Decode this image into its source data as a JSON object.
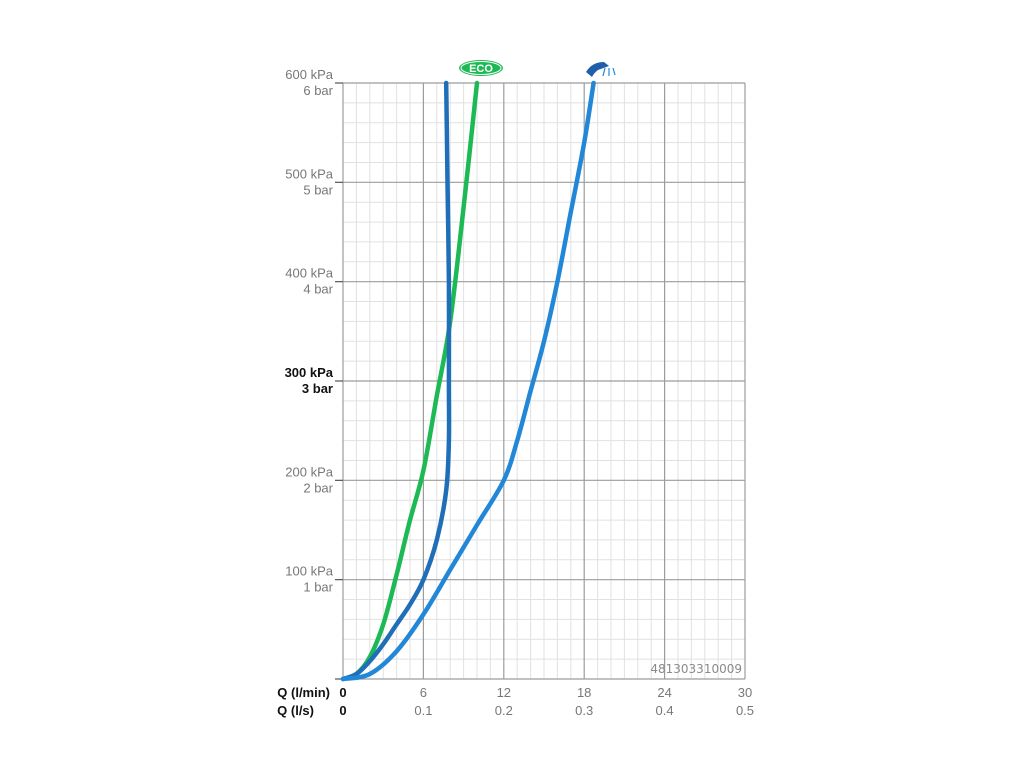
{
  "chart_data": {
    "type": "line",
    "x_axis_primary": {
      "label": "Q (l/min)",
      "ticks": [
        "0",
        "6",
        "12",
        "18",
        "24",
        "30"
      ],
      "range": [
        0,
        30
      ]
    },
    "x_axis_secondary": {
      "label": "Q (l/s)",
      "ticks": [
        "0",
        "0.1",
        "0.2",
        "0.3",
        "0.4",
        "0.5"
      ]
    },
    "y_axis": {
      "range": [
        0,
        600
      ],
      "ticks": [
        {
          "value": 600,
          "kpa": "600 kPa",
          "bar": "6 bar",
          "bold": false
        },
        {
          "value": 500,
          "kpa": "500 kPa",
          "bar": "5 bar",
          "bold": false
        },
        {
          "value": 400,
          "kpa": "400 kPa",
          "bar": "4 bar",
          "bold": false
        },
        {
          "value": 300,
          "kpa": "300 kPa",
          "bar": "3 bar",
          "bold": true
        },
        {
          "value": 200,
          "kpa": "200 kPa",
          "bar": "2 bar",
          "bold": false
        },
        {
          "value": 100,
          "kpa": "100 kPa",
          "bar": "1 bar",
          "bold": false
        }
      ]
    },
    "grid": true,
    "series": [
      {
        "marker": "eco-badge",
        "color": "#1db954",
        "points": [
          [
            0,
            0
          ],
          [
            1,
            5
          ],
          [
            2,
            22
          ],
          [
            3,
            55
          ],
          [
            4,
            105
          ],
          [
            5,
            160
          ],
          [
            6,
            210
          ],
          [
            7,
            285
          ],
          [
            8,
            360
          ],
          [
            9,
            475
          ],
          [
            10,
            600
          ]
        ]
      },
      {
        "marker": "none",
        "color": "#1f6eb8",
        "points": [
          [
            0,
            0
          ],
          [
            1,
            5
          ],
          [
            2,
            18
          ],
          [
            3,
            35
          ],
          [
            4,
            55
          ],
          [
            5,
            75
          ],
          [
            6,
            100
          ],
          [
            7,
            140
          ],
          [
            7.7,
            190
          ],
          [
            7.9,
            240
          ],
          [
            7.9,
            300
          ],
          [
            7.9,
            400
          ],
          [
            7.8,
            500
          ],
          [
            7.7,
            600
          ]
        ]
      },
      {
        "marker": "shower-head-icon",
        "color": "#2387d8",
        "points": [
          [
            0,
            0
          ],
          [
            2,
            5
          ],
          [
            4,
            28
          ],
          [
            6,
            65
          ],
          [
            8,
            110
          ],
          [
            10,
            155
          ],
          [
            12,
            200
          ],
          [
            13,
            240
          ],
          [
            14,
            290
          ],
          [
            15,
            340
          ],
          [
            16,
            400
          ],
          [
            17,
            470
          ],
          [
            18,
            540
          ],
          [
            18.7,
            600
          ]
        ]
      }
    ],
    "annotations": {
      "eco_badge": "ECO",
      "code": "481303310009"
    }
  }
}
